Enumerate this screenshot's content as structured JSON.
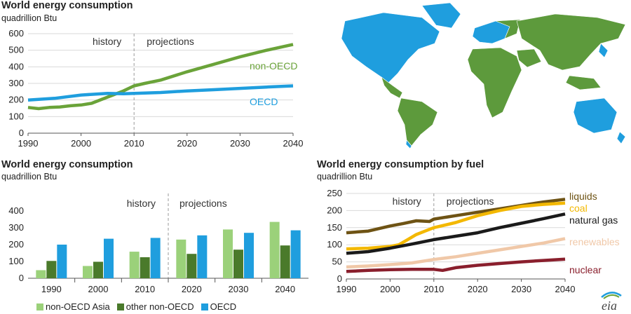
{
  "colors": {
    "nonoecd_green": "#6aa339",
    "oecd_blue": "#1f9ede",
    "bar_light_green": "#9bd17a",
    "bar_dark_green": "#4a7a2b",
    "bar_blue": "#1f9ede",
    "liquids": "#6e5314",
    "coal": "#f3b800",
    "natural_gas": "#1a1a1a",
    "renewables": "#f0c8a8",
    "nuclear": "#8a1f2d",
    "map_green": "#5d9a3c",
    "map_blue": "#1f9ede"
  },
  "chart_data": [
    {
      "type": "line",
      "title": "World energy consumption",
      "subtitle": "quadrillion Btu",
      "xlim": [
        1990,
        2040
      ],
      "ylim": [
        0,
        600
      ],
      "x_ticks": [
        "1990",
        "2000",
        "2010",
        "2020",
        "2030",
        "2040"
      ],
      "y_ticks": [
        "0",
        "100",
        "200",
        "300",
        "400",
        "500",
        "600"
      ],
      "annotations": [
        "history",
        "projections"
      ],
      "divider_x": 2010,
      "series": [
        {
          "name": "non-OECD",
          "color_key": "nonoecd_green",
          "x": [
            1990,
            1992,
            1994,
            1996,
            1998,
            2000,
            2002,
            2004,
            2006,
            2008,
            2010,
            2012,
            2015,
            2020,
            2025,
            2030,
            2035,
            2040
          ],
          "y": [
            155,
            148,
            155,
            158,
            165,
            170,
            180,
            205,
            230,
            255,
            285,
            300,
            320,
            370,
            415,
            460,
            500,
            535
          ]
        },
        {
          "name": "OECD",
          "color_key": "oecd_blue",
          "x": [
            1990,
            1995,
            2000,
            2005,
            2008,
            2010,
            2015,
            2020,
            2025,
            2030,
            2035,
            2040
          ],
          "y": [
            200,
            210,
            230,
            240,
            238,
            240,
            245,
            255,
            262,
            270,
            278,
            285
          ]
        }
      ]
    },
    {
      "type": "bar",
      "title": "World energy consumption",
      "subtitle": "quadrillion Btu",
      "categories": [
        "1990",
        "2000",
        "2010",
        "2020",
        "2030",
        "2040"
      ],
      "ylim": [
        0,
        400
      ],
      "y_ticks": [
        "0",
        "100",
        "200",
        "300",
        "400"
      ],
      "annotations": [
        "history",
        "projections"
      ],
      "series": [
        {
          "name": "non-OECD Asia",
          "color_key": "bar_light_green",
          "values": [
            48,
            73,
            158,
            230,
            290,
            335
          ]
        },
        {
          "name": "other non-OECD",
          "color_key": "bar_dark_green",
          "values": [
            103,
            98,
            125,
            145,
            170,
            195
          ]
        },
        {
          "name": "OECD",
          "color_key": "bar_blue",
          "values": [
            200,
            235,
            240,
            255,
            270,
            285
          ]
        }
      ]
    },
    {
      "type": "line",
      "title": "World energy consumption by fuel",
      "subtitle": "quadrillion Btu",
      "xlim": [
        1990,
        2040
      ],
      "ylim": [
        0,
        250
      ],
      "x_ticks": [
        "1990",
        "2000",
        "2010",
        "2020",
        "2030",
        "2040"
      ],
      "y_ticks": [
        "0",
        "50",
        "100",
        "150",
        "200",
        "250"
      ],
      "annotations": [
        "history",
        "projections"
      ],
      "divider_x": 2010,
      "series": [
        {
          "name": "liquids",
          "color_key": "liquids",
          "x": [
            1990,
            1995,
            2000,
            2003,
            2006,
            2009,
            2010,
            2015,
            2020,
            2025,
            2030,
            2035,
            2040
          ],
          "y": [
            135,
            140,
            155,
            162,
            170,
            168,
            175,
            185,
            195,
            205,
            215,
            225,
            233
          ]
        },
        {
          "name": "coal",
          "color_key": "coal",
          "x": [
            1990,
            1995,
            2000,
            2002,
            2004,
            2006,
            2008,
            2010,
            2015,
            2020,
            2025,
            2030,
            2035,
            2040
          ],
          "y": [
            88,
            90,
            95,
            100,
            115,
            130,
            140,
            150,
            165,
            185,
            200,
            212,
            218,
            222
          ]
        },
        {
          "name": "natural gas",
          "color_key": "natural_gas",
          "x": [
            1990,
            1995,
            2000,
            2005,
            2010,
            2015,
            2020,
            2025,
            2030,
            2035,
            2040
          ],
          "y": [
            75,
            80,
            90,
            102,
            115,
            125,
            135,
            150,
            163,
            176,
            190
          ]
        },
        {
          "name": "renewables",
          "color_key": "renewables",
          "x": [
            1990,
            1995,
            2000,
            2005,
            2010,
            2015,
            2020,
            2025,
            2030,
            2035,
            2040
          ],
          "y": [
            35,
            38,
            42,
            47,
            57,
            65,
            75,
            85,
            95,
            105,
            118
          ]
        },
        {
          "name": "nuclear",
          "color_key": "nuclear",
          "x": [
            1990,
            1995,
            2000,
            2005,
            2010,
            2012,
            2015,
            2020,
            2025,
            2030,
            2035,
            2040
          ],
          "y": [
            22,
            25,
            27,
            28,
            28,
            25,
            33,
            40,
            45,
            50,
            54,
            58
          ]
        }
      ]
    }
  ]
}
